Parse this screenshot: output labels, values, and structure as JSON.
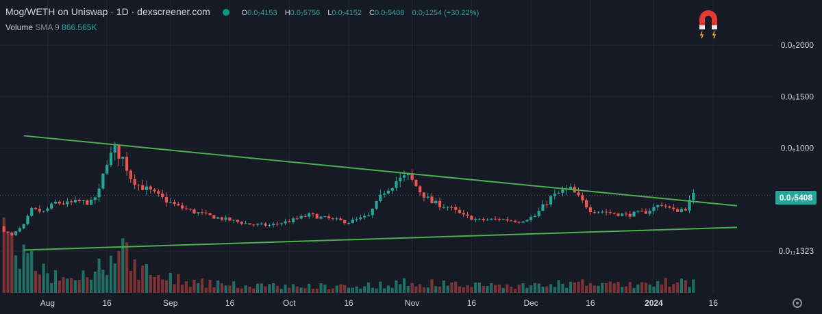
{
  "header": {
    "title": "Mog/WETH on Uniswap · 1D · dexscreener.com",
    "ohlc": [
      {
        "k": "O",
        "v": "0.0₇4153"
      },
      {
        "k": "H",
        "v": "0.0₇5756"
      },
      {
        "k": "L",
        "v": "0.0₇4152"
      },
      {
        "k": "C",
        "v": "0.0₇5408"
      }
    ],
    "change": "0.0₇1254 (+30.22%)",
    "volume_label": "Volume",
    "volume_sma": "SMA 9",
    "volume_value": "866.565K"
  },
  "price_tag": "0.0₇5408",
  "colors": {
    "up": "#26a69a",
    "down": "#ef5350",
    "trend": "#4caf50",
    "background": "#161a25"
  },
  "icons": [
    "magnet-icon",
    "settings-icon"
  ],
  "chart_data": {
    "type": "candlestick",
    "unit": "1e-8 WETH",
    "y_tick_labels": [
      {
        "label": "0.0₆2000",
        "value": 20
      },
      {
        "label": "0.0₆1500",
        "value": 15
      },
      {
        "label": "0.0₆1000",
        "value": 10
      },
      {
        "label": "0.0₇5408",
        "value": 5.408
      },
      {
        "label": "0.0₁₁1323",
        "value": 0
      }
    ],
    "x_tick_labels": [
      {
        "label": "Aug",
        "date": "2023-08-01"
      },
      {
        "label": "16",
        "date": "2023-08-16"
      },
      {
        "label": "Sep",
        "date": "2023-09-01"
      },
      {
        "label": "16",
        "date": "2023-09-16"
      },
      {
        "label": "Oct",
        "date": "2023-10-01"
      },
      {
        "label": "16",
        "date": "2023-10-16"
      },
      {
        "label": "Nov",
        "date": "2023-11-01"
      },
      {
        "label": "16",
        "date": "2023-11-16"
      },
      {
        "label": "Dec",
        "date": "2023-12-01"
      },
      {
        "label": "16",
        "date": "2023-12-16"
      },
      {
        "label": "2024",
        "date": "2024-01-01"
      },
      {
        "label": "16",
        "date": "2024-01-16"
      }
    ],
    "x_range": [
      "2023-07-20",
      "2024-01-31"
    ],
    "y_range": [
      0,
      23
    ],
    "closes": {
      "dates": [
        "2023-07-21",
        "2023-07-23",
        "2023-07-26",
        "2023-07-28",
        "2023-07-31",
        "2023-08-03",
        "2023-08-06",
        "2023-08-09",
        "2023-08-12",
        "2023-08-14",
        "2023-08-16",
        "2023-08-18",
        "2023-08-20",
        "2023-08-22",
        "2023-08-24",
        "2023-08-27",
        "2023-08-30",
        "2023-09-03",
        "2023-09-07",
        "2023-09-11",
        "2023-09-16",
        "2023-09-21",
        "2023-09-26",
        "2023-10-01",
        "2023-10-06",
        "2023-10-10",
        "2023-10-16",
        "2023-10-21",
        "2023-10-25",
        "2023-10-28",
        "2023-10-31",
        "2023-11-03",
        "2023-11-06",
        "2023-11-10",
        "2023-11-14",
        "2023-11-18",
        "2023-11-23",
        "2023-11-28",
        "2023-12-02",
        "2023-12-06",
        "2023-12-09",
        "2023-12-11",
        "2023-12-13",
        "2023-12-16",
        "2023-12-20",
        "2023-12-25",
        "2023-12-30",
        "2024-01-03",
        "2024-01-06",
        "2024-01-09",
        "2024-01-11"
      ],
      "values": [
        2.0,
        1.5,
        2.5,
        4.0,
        3.8,
        4.7,
        4.6,
        4.8,
        4.7,
        5.8,
        8.8,
        9.8,
        9.0,
        7.2,
        6.4,
        5.8,
        5.1,
        4.3,
        3.8,
        3.4,
        3.0,
        2.6,
        2.5,
        2.9,
        3.5,
        3.2,
        2.8,
        3.4,
        5.8,
        6.8,
        7.3,
        5.8,
        4.7,
        4.3,
        3.4,
        3.0,
        3.1,
        2.9,
        3.4,
        5.2,
        5.8,
        6.0,
        5.2,
        4.0,
        3.8,
        3.5,
        3.8,
        4.6,
        3.9,
        4.15,
        5.41
      ]
    },
    "volume_series": {
      "dates": [
        "2023-07-21",
        "2023-07-23",
        "2023-07-26",
        "2023-07-30",
        "2023-08-03",
        "2023-08-08",
        "2023-08-13",
        "2023-08-16",
        "2023-08-19",
        "2023-08-23",
        "2023-08-28",
        "2023-09-05",
        "2023-09-15",
        "2023-10-01",
        "2023-10-20",
        "2023-11-01",
        "2023-11-15",
        "2023-12-01",
        "2023-12-12",
        "2023-12-25",
        "2024-01-11"
      ],
      "values": [
        700,
        650,
        420,
        260,
        180,
        160,
        220,
        400,
        480,
        300,
        200,
        130,
        90,
        75,
        80,
        120,
        90,
        80,
        110,
        90,
        130
      ]
    },
    "trendlines": [
      {
        "name": "",
        "from": {
          "date": "2023-07-26",
          "value": 11.2
        },
        "to": {
          "date": "2024-01-22",
          "value": 4.4
        }
      },
      {
        "name": "",
        "from": {
          "date": "2023-07-26",
          "value": 0.1
        },
        "to": {
          "date": "2024-01-22",
          "value": 2.3
        }
      }
    ],
    "grid": true,
    "last_price_line": 5.408
  }
}
